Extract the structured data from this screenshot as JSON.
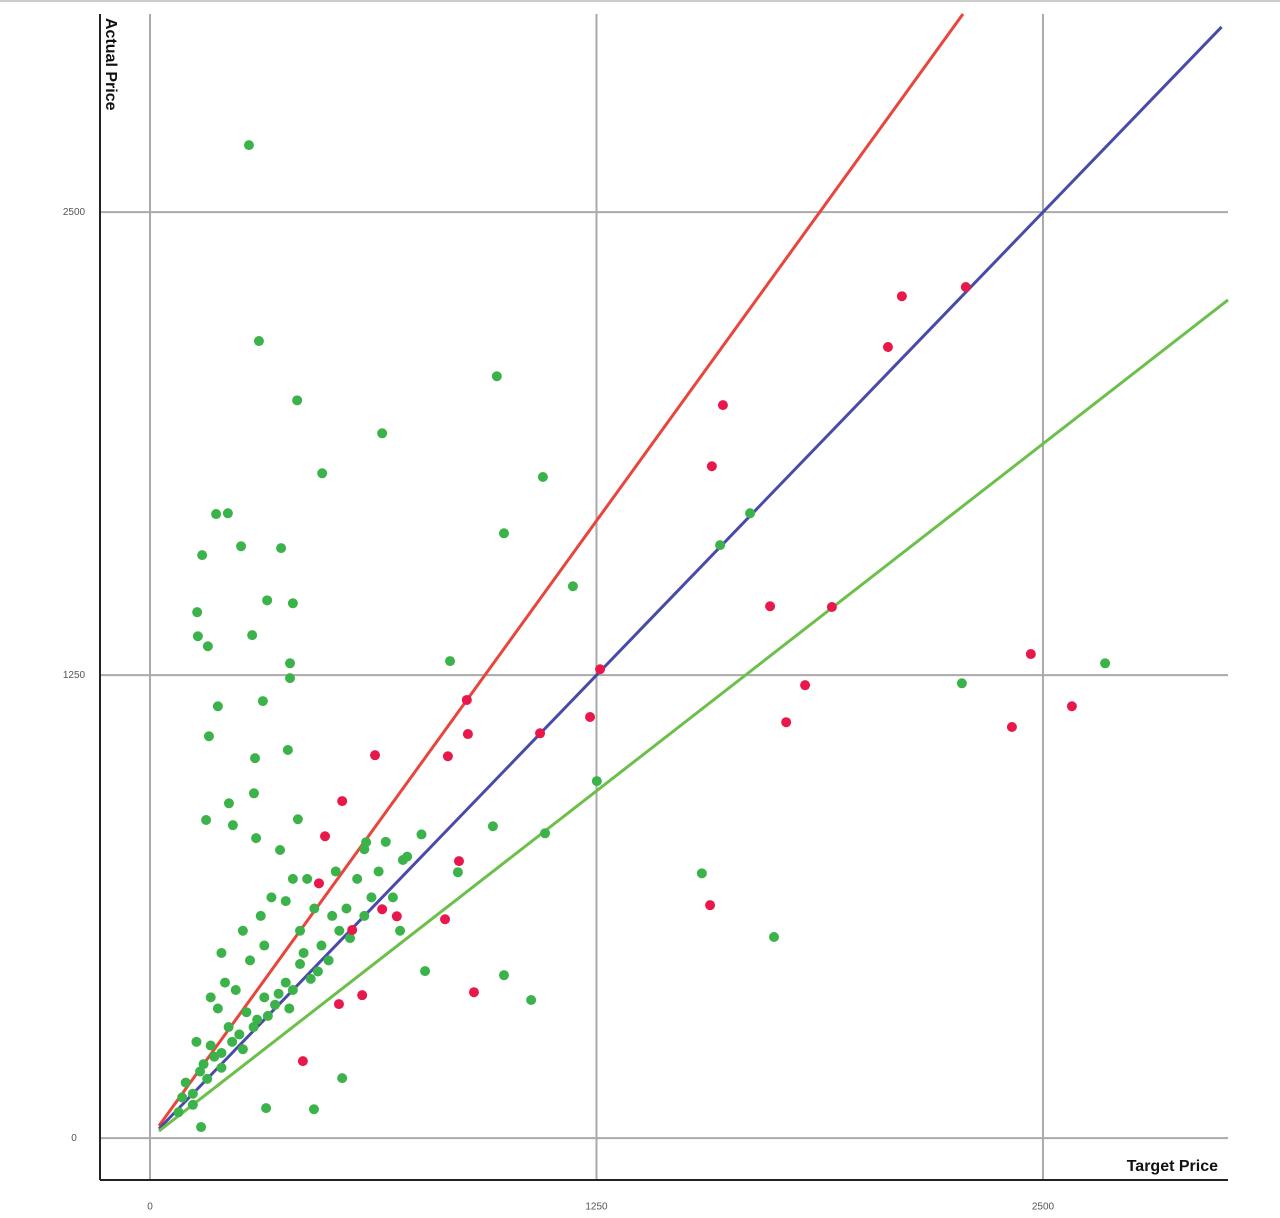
{
  "chart_data": {
    "type": "scatter",
    "x_label": "Target Price",
    "y_label": "Actual Price",
    "xlim": [
      -140,
      3018
    ],
    "ylim": [
      -113,
      3035
    ],
    "xticks": [
      0,
      1250,
      2500
    ],
    "yticks": [
      0,
      1250,
      2500
    ],
    "grid": true,
    "lines": [
      {
        "color": "#e8453c",
        "x": [
          25,
          2276
        ],
        "y": [
          33,
          3035
        ]
      },
      {
        "color": "#4a4aa8",
        "x": [
          25,
          3000
        ],
        "y": [
          25,
          3000
        ]
      },
      {
        "color": "#6cc04a",
        "x": [
          25,
          3018
        ],
        "y": [
          19,
          2263
        ]
      }
    ],
    "series": [
      {
        "color": "#3cb34a",
        "x": [
          277,
          305,
          971,
          412,
          650,
          482,
          1100,
          185,
          218,
          991,
          1680,
          1596,
          146,
          255,
          367,
          1184,
          328,
          400,
          132,
          286,
          134,
          162,
          392,
          840,
          2674,
          2273,
          392,
          190,
          316,
          165,
          386,
          294,
          1251,
          291,
          221,
          157,
          232,
          960,
          1106,
          414,
          297,
          364,
          605,
          1545,
          708,
          862,
          1747,
          770,
          991,
          1067,
          325,
          459,
          538,
          143,
          150,
          170,
          200,
          220,
          250,
          270,
          300,
          320,
          350,
          380,
          400,
          420,
          450,
          480,
          500,
          530,
          560,
          600,
          620,
          100,
          120,
          140,
          160,
          180,
          200,
          230,
          260,
          290,
          330,
          360,
          390,
          430,
          470,
          510,
          550,
          580,
          640,
          680,
          700,
          120,
          90,
          80,
          190,
          240,
          280,
          320,
          420,
          460,
          200,
          260,
          340,
          400,
          520,
          600,
          660,
          720,
          130,
          170,
          210,
          310,
          380,
          440,
          760
        ],
        "y": [
          2681,
          2152,
          2057,
          1992,
          1903,
          1795,
          1785,
          1685,
          1687,
          1633,
          1687,
          1601,
          1574,
          1598,
          1593,
          1490,
          1452,
          1444,
          1420,
          1358,
          1355,
          1328,
          1282,
          1288,
          1282,
          1228,
          1242,
          1166,
          1180,
          1085,
          1048,
          1026,
          964,
          931,
          904,
          859,
          845,
          842,
          823,
          861,
          810,
          778,
          799,
          715,
          751,
          718,
          543,
          451,
          440,
          373,
          81,
          78,
          162,
          30,
          200,
          250,
          230,
          300,
          280,
          340,
          320,
          380,
          360,
          420,
          400,
          470,
          430,
          520,
          480,
          560,
          540,
          600,
          650,
          150,
          120,
          180,
          160,
          220,
          190,
          260,
          240,
          300,
          330,
          390,
          350,
          500,
          450,
          600,
          620,
          700,
          720,
          650,
          560,
          90,
          110,
          70,
          350,
          400,
          480,
          520,
          560,
          620,
          500,
          560,
          650,
          700,
          720,
          780,
          800,
          760,
          260,
          380,
          420,
          600,
          640,
          700,
          820
        ]
      },
      {
        "color": "#e8194a",
        "x": [
          2105,
          2284,
          2066,
          1604,
          1573,
          1736,
          1909,
          1260,
          2466,
          2581,
          1834,
          1781,
          2413,
          1232,
          1092,
          887,
          890,
          834,
          630,
          538,
          490,
          1568,
          865,
          473,
          691,
          650,
          826,
          566,
          907,
          594,
          529,
          428
        ],
        "y": [
          2273,
          2298,
          2136,
          1979,
          1814,
          1436,
          1434,
          1266,
          1307,
          1166,
          1223,
          1123,
          1110,
          1137,
          1093,
          1183,
          1091,
          1031,
          1034,
          910,
          815,
          629,
          748,
          688,
          599,
          618,
          591,
          562,
          394,
          386,
          362,
          208
        ]
      }
    ]
  }
}
